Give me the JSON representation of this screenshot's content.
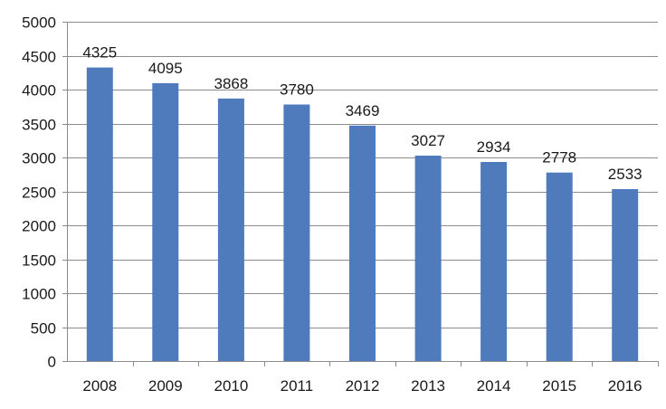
{
  "chart_data": {
    "type": "bar",
    "title": "",
    "xlabel": "",
    "ylabel": "",
    "categories": [
      "2008",
      "2009",
      "2010",
      "2011",
      "2012",
      "2013",
      "2014",
      "2015",
      "2016"
    ],
    "values": [
      4325,
      4095,
      3868,
      3780,
      3469,
      3027,
      2934,
      2778,
      2533
    ],
    "data_labels": [
      "4325",
      "4095",
      "3868",
      "3780",
      "3469",
      "3027",
      "2934",
      "2778",
      "2533"
    ],
    "ylim": [
      0,
      5000
    ],
    "yticks": [
      0,
      500,
      1000,
      1500,
      2000,
      2500,
      3000,
      3500,
      4000,
      4500,
      5000
    ],
    "ytick_labels": [
      "0",
      "500",
      "1000",
      "1500",
      "2000",
      "2500",
      "3000",
      "3500",
      "4000",
      "4500",
      "5000"
    ],
    "grid": true,
    "legend": "none",
    "bar_color": "#4f7bbd",
    "grid_color": "#8c8c8c"
  }
}
